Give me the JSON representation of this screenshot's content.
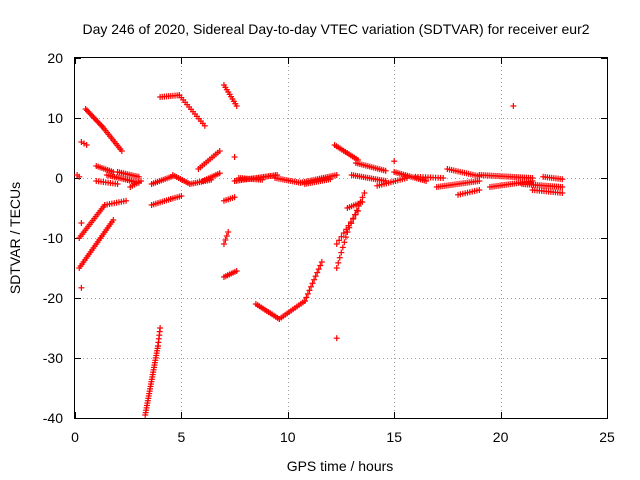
{
  "chart_data": {
    "type": "scatter",
    "title": "Day 246 of 2020, Sidereal Day-to-day VTEC variation (SDTVAR) for receiver eur2",
    "xlabel": "GPS time / hours",
    "ylabel": "SDTVAR / TECUs",
    "xlim": [
      0,
      25
    ],
    "ylim": [
      -40,
      20
    ],
    "xticks": [
      0,
      5,
      10,
      15,
      20,
      25
    ],
    "yticks": [
      -40,
      -30,
      -20,
      -10,
      0,
      10,
      20
    ],
    "xtick_labels": [
      "0",
      "5",
      "10",
      "15",
      "20",
      "25"
    ],
    "ytick_labels": [
      "-40",
      "-30",
      "-20",
      "-10",
      "0",
      "10",
      "20"
    ],
    "grid": true,
    "legend": "none",
    "marker": "+",
    "color": "#ff0000",
    "isolated_points": [
      [
        0.1,
        0.5
      ],
      [
        0.2,
        0.2
      ],
      [
        0.3,
        -7.5
      ],
      [
        0.3,
        -18.3
      ],
      [
        7.5,
        3.5
      ],
      [
        15.0,
        2.8
      ],
      [
        20.6,
        12.0
      ],
      [
        12.3,
        -26.7
      ]
    ],
    "point_runs": [
      [
        [
          0.3,
          6.0
        ],
        [
          0.55,
          5.5
        ],
        3
      ],
      [
        [
          0.5,
          11.5
        ],
        [
          1.3,
          8.5
        ],
        14
      ],
      [
        [
          1.3,
          8.5
        ],
        [
          2.2,
          4.5
        ],
        14
      ],
      [
        [
          0.2,
          -10.0
        ],
        [
          1.4,
          -4.5
        ],
        18
      ],
      [
        [
          1.4,
          -4.5
        ],
        [
          2.4,
          -3.8
        ],
        10
      ],
      [
        [
          0.2,
          -15.0
        ],
        [
          1.2,
          -10.0
        ],
        16
      ],
      [
        [
          1.2,
          -10.0
        ],
        [
          1.8,
          -7.0
        ],
        10
      ],
      [
        [
          1.0,
          2.0
        ],
        [
          1.8,
          1.0
        ],
        10
      ],
      [
        [
          1.0,
          -0.5
        ],
        [
          2.0,
          -1.0
        ],
        10
      ],
      [
        [
          1.5,
          0.5
        ],
        [
          3.0,
          -0.8
        ],
        18
      ],
      [
        [
          2.0,
          1.0
        ],
        [
          3.0,
          0.2
        ],
        12
      ],
      [
        [
          2.6,
          -1.5
        ],
        [
          3.1,
          -0.5
        ],
        6
      ],
      [
        [
          3.3,
          -39.5
        ],
        [
          3.9,
          -28.0
        ],
        30
      ],
      [
        [
          3.9,
          -28.0
        ],
        [
          4.0,
          -25.0
        ],
        6
      ],
      [
        [
          3.6,
          -1.0
        ],
        [
          4.6,
          0.3
        ],
        12
      ],
      [
        [
          3.6,
          -4.5
        ],
        [
          4.5,
          -3.5
        ],
        10
      ],
      [
        [
          4.5,
          -3.5
        ],
        [
          5.0,
          -3.0
        ],
        6
      ],
      [
        [
          4.0,
          13.5
        ],
        [
          4.9,
          13.8
        ],
        10
      ],
      [
        [
          4.9,
          13.8
        ],
        [
          6.1,
          8.7
        ],
        14
      ],
      [
        [
          4.6,
          0.5
        ],
        [
          5.4,
          -1.0
        ],
        10
      ],
      [
        [
          5.4,
          -1.0
        ],
        [
          6.4,
          -0.3
        ],
        12
      ],
      [
        [
          5.8,
          1.5
        ],
        [
          6.8,
          4.5
        ],
        12
      ],
      [
        [
          6.0,
          -0.5
        ],
        [
          6.8,
          0.8
        ],
        10
      ],
      [
        [
          7.0,
          15.5
        ],
        [
          7.6,
          12.0
        ],
        10
      ],
      [
        [
          7.0,
          -3.8
        ],
        [
          7.5,
          -3.2
        ],
        6
      ],
      [
        [
          7.0,
          -16.5
        ],
        [
          7.6,
          -15.5
        ],
        8
      ],
      [
        [
          7.0,
          -11.0
        ],
        [
          7.2,
          -9.0
        ],
        4
      ],
      [
        [
          7.5,
          -0.5
        ],
        [
          9.5,
          0.5
        ],
        26
      ],
      [
        [
          7.7,
          0.0
        ],
        [
          8.8,
          -0.3
        ],
        14
      ],
      [
        [
          9.4,
          0.0
        ],
        [
          10.6,
          -0.8
        ],
        14
      ],
      [
        [
          8.5,
          -21.0
        ],
        [
          9.6,
          -23.5
        ],
        14
      ],
      [
        [
          9.6,
          -23.5
        ],
        [
          10.8,
          -20.5
        ],
        14
      ],
      [
        [
          10.8,
          -20.5
        ],
        [
          11.6,
          -14.0
        ],
        12
      ],
      [
        [
          10.6,
          -0.8
        ],
        [
          12.3,
          0.5
        ],
        20
      ],
      [
        [
          10.8,
          -1.0
        ],
        [
          12.0,
          -0.2
        ],
        14
      ],
      [
        [
          12.2,
          5.5
        ],
        [
          13.3,
          3.0
        ],
        14
      ],
      [
        [
          12.3,
          -15.0
        ],
        [
          12.8,
          -9.0
        ],
        8
      ],
      [
        [
          12.3,
          -11.0
        ],
        [
          13.3,
          -5.5
        ],
        10
      ],
      [
        [
          12.8,
          -9.0
        ],
        [
          13.6,
          -2.5
        ],
        10
      ],
      [
        [
          12.8,
          -5.0
        ],
        [
          13.5,
          -4.0
        ],
        8
      ],
      [
        [
          13.0,
          0.5
        ],
        [
          14.6,
          -0.5
        ],
        18
      ],
      [
        [
          13.2,
          2.5
        ],
        [
          14.6,
          1.2
        ],
        16
      ],
      [
        [
          14.2,
          -1.3
        ],
        [
          15.6,
          0.0
        ],
        14
      ],
      [
        [
          15.0,
          1.0
        ],
        [
          16.5,
          -0.5
        ],
        18
      ],
      [
        [
          16.0,
          0.2
        ],
        [
          17.3,
          0.0
        ],
        12
      ],
      [
        [
          17.0,
          -1.5
        ],
        [
          19.0,
          -0.5
        ],
        22
      ],
      [
        [
          17.5,
          1.5
        ],
        [
          19.0,
          0.3
        ],
        16
      ],
      [
        [
          18.0,
          -2.8
        ],
        [
          19.0,
          -2.0
        ],
        10
      ],
      [
        [
          19.0,
          0.5
        ],
        [
          21.5,
          0.0
        ],
        28
      ],
      [
        [
          19.5,
          -1.5
        ],
        [
          21.5,
          -0.5
        ],
        22
      ],
      [
        [
          21.0,
          -1.0
        ],
        [
          22.9,
          -1.5
        ],
        22
      ],
      [
        [
          21.5,
          -2.0
        ],
        [
          22.9,
          -2.5
        ],
        14
      ],
      [
        [
          22.0,
          0.2
        ],
        [
          22.9,
          -0.2
        ],
        10
      ]
    ]
  }
}
